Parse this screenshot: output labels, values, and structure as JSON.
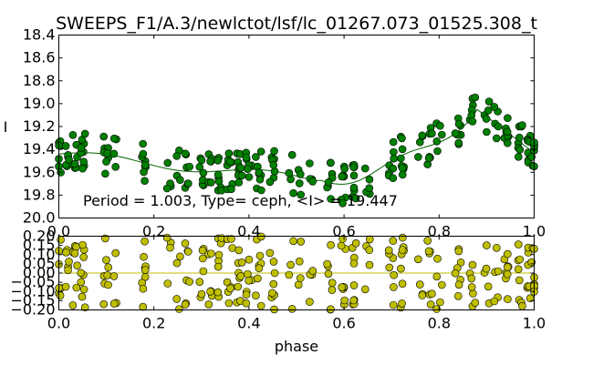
{
  "title": "SWEEPS_F1/A.3/newlctot/lsf/lc_01267.073_01525.308_t",
  "colors": {
    "top_points": "#008000",
    "bottom_points": "#bfbf00",
    "top_line": "#006400",
    "bottom_line": "#bfbf00"
  },
  "chart_data": [
    {
      "type": "scatter",
      "panel": "light-curve",
      "xlabel": "",
      "ylabel": "I",
      "xlim": [
        0.0,
        1.0
      ],
      "ylim": [
        20.0,
        18.4
      ],
      "y_inverted": true,
      "xticks": [
        "0.0",
        "0.2",
        "0.4",
        "0.6",
        "0.8",
        "1.0"
      ],
      "yticks": [
        "18.4",
        "18.6",
        "18.8",
        "19.0",
        "19.2",
        "19.4",
        "19.6",
        "19.8",
        "20.0"
      ],
      "annotation": "Period = 1.003, Type= ceph, <I> = 19.447",
      "series": [
        {
          "name": "",
          "kind": "points",
          "points": []
        },
        {
          "name": "",
          "kind": "model",
          "x": [],
          "y": []
        }
      ]
    },
    {
      "type": "scatter",
      "panel": "residuals",
      "xlabel": "phase",
      "ylabel": "",
      "xlim": [
        0.0,
        1.0
      ],
      "ylim": [
        -0.2,
        0.2
      ],
      "xticks": [
        "0.0",
        "0.2",
        "0.4",
        "0.6",
        "0.8",
        "1.0"
      ],
      "yticks": [
        "0.20",
        "0.15",
        "0.10",
        "0.05",
        "0.00",
        "−0.05",
        "−0.10",
        "−0.15",
        "−0.20"
      ],
      "zero_line": 0.0,
      "series": [
        {
          "name": "",
          "kind": "points",
          "points": []
        }
      ]
    }
  ]
}
